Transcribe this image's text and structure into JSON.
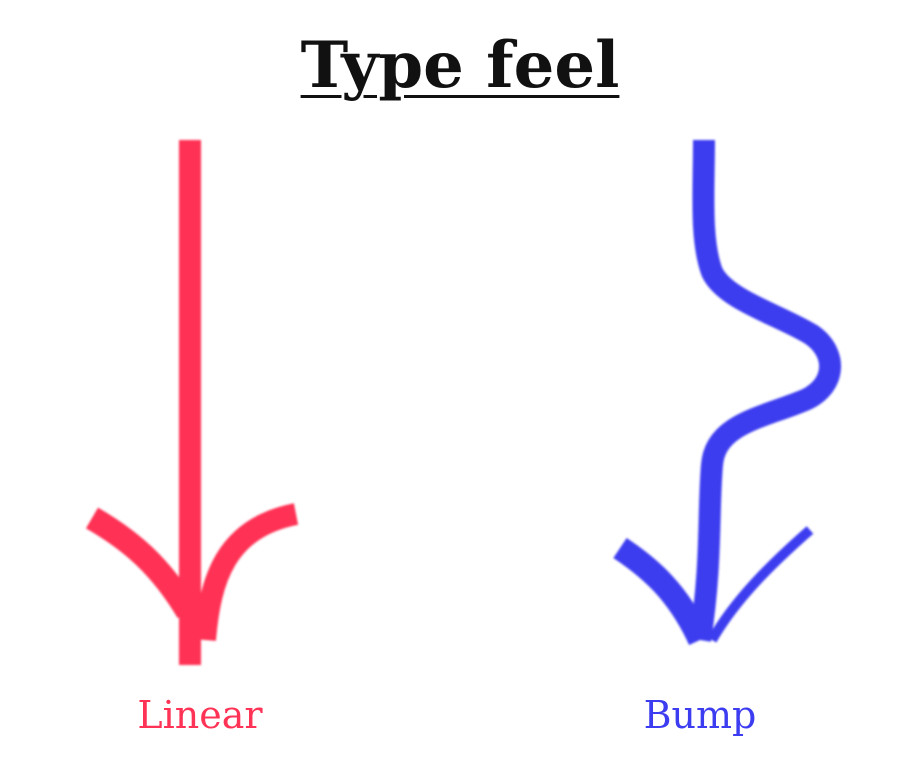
{
  "title": "Type feel",
  "colors": {
    "linear": "#ff3355",
    "bump": "#3c3cf0",
    "title": "#111111"
  },
  "arrows": [
    {
      "label": "Linear",
      "shape": "straight",
      "color_key": "linear"
    },
    {
      "label": "Bump",
      "shape": "wavy",
      "color_key": "bump"
    }
  ]
}
